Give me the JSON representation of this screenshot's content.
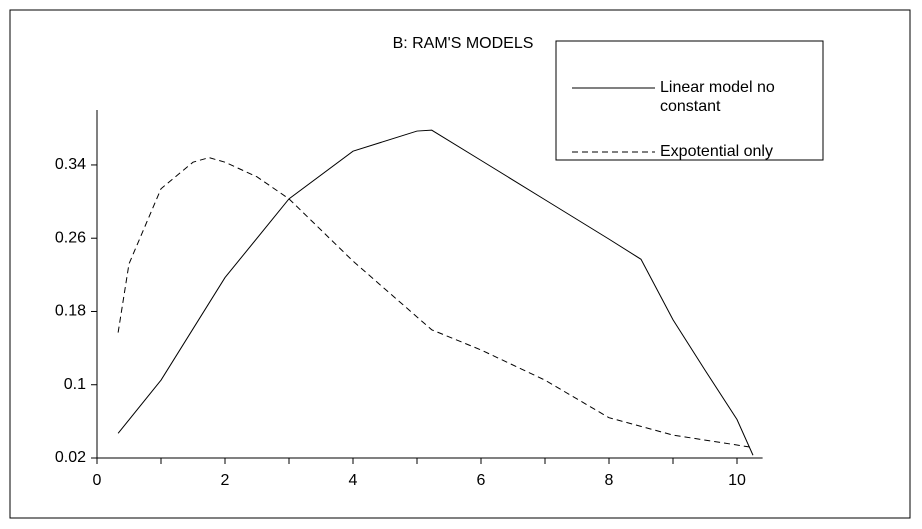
{
  "chart_data": {
    "type": "line",
    "title": "B: RAM'S MODELS",
    "series": [
      {
        "name": "Linear model no constant",
        "color": "#000000",
        "dash": "solid",
        "x": [
          0.33,
          1,
          2,
          3,
          4,
          5,
          5.23,
          6,
          7,
          8,
          8.5,
          9,
          9.5,
          10,
          10.25
        ],
        "values": [
          0.047,
          0.105,
          0.217,
          0.303,
          0.355,
          0.377,
          0.378,
          0.345,
          0.302,
          0.259,
          0.237,
          0.171,
          0.116,
          0.062,
          0.023
        ]
      },
      {
        "name": "Expotential only",
        "color": "#000000",
        "dash": "dashed",
        "x": [
          0.33,
          0.5,
          1,
          1.5,
          1.75,
          2,
          2.5,
          3,
          4,
          5.23,
          6,
          7,
          8,
          9,
          10.2
        ],
        "values": [
          0.157,
          0.232,
          0.314,
          0.343,
          0.348,
          0.343,
          0.327,
          0.303,
          0.235,
          0.16,
          0.138,
          0.105,
          0.064,
          0.045,
          0.032
        ]
      }
    ],
    "xlim": [
      0,
      10.4
    ],
    "xticks": [
      0,
      2,
      4,
      6,
      8,
      10
    ],
    "xminorticks": [
      1,
      3,
      5,
      7,
      9
    ],
    "ylim": [
      0.02,
      0.4
    ],
    "yticks": [
      0.02,
      0.1,
      0.18,
      0.26,
      0.34
    ],
    "grid": false,
    "legend": "top-right"
  }
}
